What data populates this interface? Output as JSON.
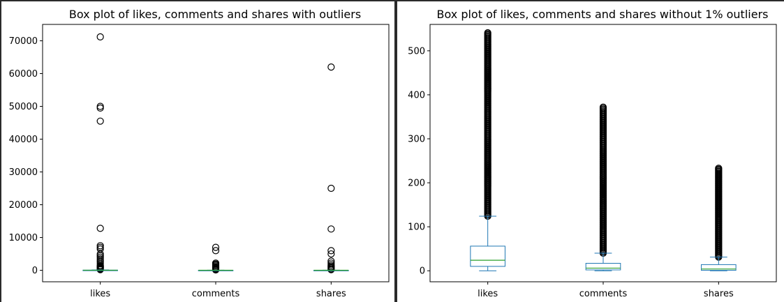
{
  "chart_data": [
    {
      "type": "box",
      "title": "Box plot of likes, comments and shares with outliers",
      "categories": [
        "likes",
        "comments",
        "shares"
      ],
      "ylim": [
        -3500,
        75000
      ],
      "yticks": [
        0,
        10000,
        20000,
        30000,
        40000,
        50000,
        60000,
        70000
      ],
      "grid": false,
      "boxes": [
        {
          "name": "likes",
          "q1": 10,
          "median": 24,
          "q3": 56,
          "whisker_low": 0,
          "whisker_high": 124,
          "outliers": [
            71200,
            50000,
            49500,
            45500,
            12800,
            7500,
            7000,
            6500,
            5000,
            4500,
            4000,
            3500,
            3000,
            2500,
            2000,
            1500,
            1200,
            1000,
            800,
            600,
            400,
            200
          ]
        },
        {
          "name": "comments",
          "q1": 2,
          "median": 6,
          "q3": 15,
          "whisker_low": 0,
          "whisker_high": 38,
          "outliers": [
            7000,
            6000,
            2200,
            1900,
            1600,
            1300,
            1000,
            800,
            600,
            400,
            200,
            100
          ]
        },
        {
          "name": "shares",
          "q1": 1,
          "median": 4,
          "q3": 13,
          "whisker_low": 0,
          "whisker_high": 31,
          "outliers": [
            62000,
            25000,
            12600,
            6000,
            5000,
            2800,
            2200,
            1700,
            1300,
            1000,
            700,
            400,
            200
          ]
        }
      ]
    },
    {
      "type": "box",
      "title": "Box plot of likes, comments and shares without 1% outliers",
      "categories": [
        "likes",
        "comments",
        "shares"
      ],
      "ylim": [
        -25,
        560
      ],
      "yticks": [
        0,
        100,
        200,
        300,
        400,
        500
      ],
      "grid": false,
      "boxes": [
        {
          "name": "likes",
          "q1": 10,
          "median": 24,
          "q3": 56,
          "whisker_low": 0,
          "whisker_high": 124,
          "outlier_range": [
            124,
            541
          ]
        },
        {
          "name": "comments",
          "q1": 2,
          "median": 6,
          "q3": 17,
          "whisker_low": 0,
          "whisker_high": 40,
          "outlier_range": [
            40,
            372
          ]
        },
        {
          "name": "shares",
          "q1": 1,
          "median": 4,
          "q3": 14,
          "whisker_low": 0,
          "whisker_high": 31,
          "outlier_range": [
            31,
            233
          ]
        }
      ]
    }
  ],
  "colors": {
    "box": "#1f77b4",
    "median": "#2ca02c",
    "outlier": "#000000"
  }
}
